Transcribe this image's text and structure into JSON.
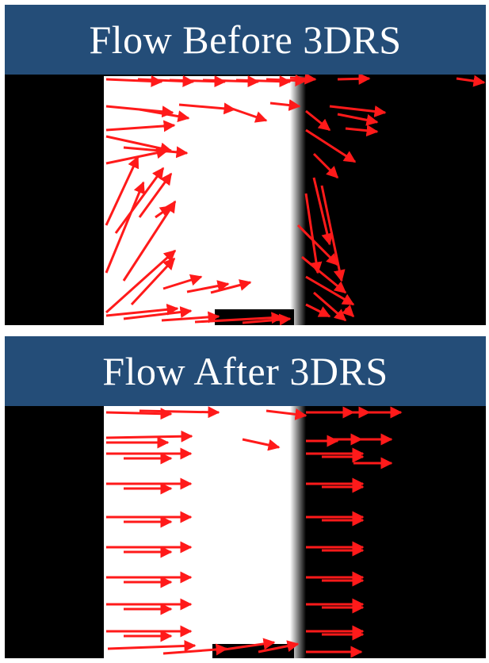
{
  "panels": [
    {
      "title": "Flow Before 3DRS"
    },
    {
      "title": "Flow After 3DRS"
    }
  ],
  "colors": {
    "header_bg": "#244d78",
    "header_text": "#ffffff",
    "background": "#000000",
    "object": "#ffffff",
    "arrow": "#ff1a1a"
  }
}
